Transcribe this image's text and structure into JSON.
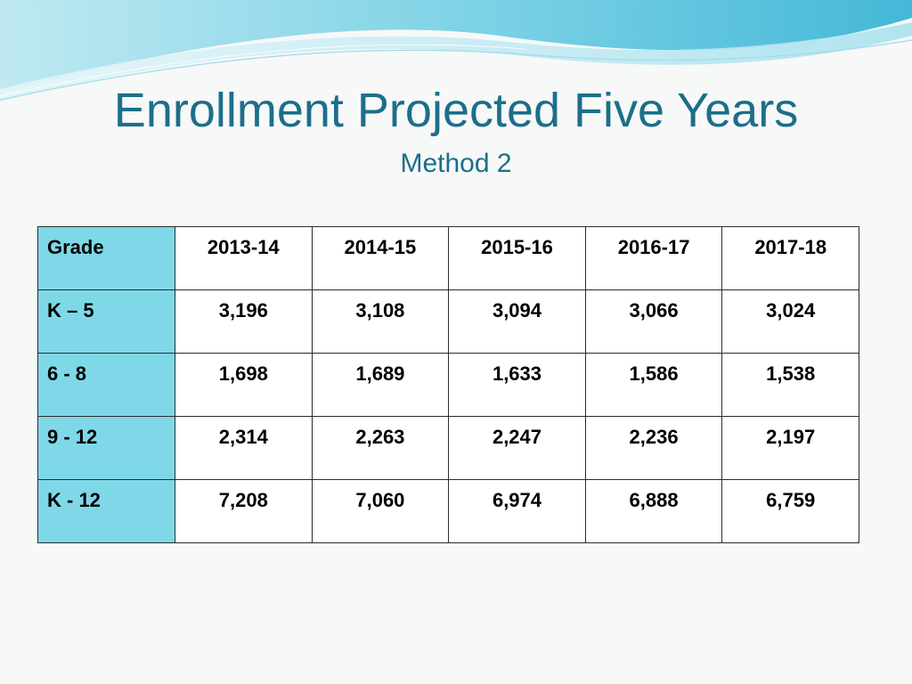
{
  "slide": {
    "title": "Enrollment Projected Five Years",
    "subtitle": "Method 2"
  },
  "table": {
    "corner_label": "Grade",
    "years": [
      "2013-14",
      "2014-15",
      "2015-16",
      "2016-17",
      "2017-18"
    ],
    "rows": [
      {
        "grade": "K – 5",
        "values": [
          "3,196",
          "3,108",
          "3,094",
          "3,066",
          "3,024"
        ]
      },
      {
        "grade": "6 - 8",
        "values": [
          "1,698",
          "1,689",
          "1,633",
          "1,586",
          "1,538"
        ]
      },
      {
        "grade": "9 - 12",
        "values": [
          "2,314",
          "2,263",
          "2,247",
          "2,236",
          "2,197"
        ]
      },
      {
        "grade": "K - 12",
        "values": [
          "7,208",
          "7,060",
          "6,974",
          "6,888",
          "6,759"
        ]
      }
    ]
  },
  "colors": {
    "title": "#1b6f8a",
    "grade_column": "#7fd8e8",
    "background": "#f7f8f8"
  }
}
